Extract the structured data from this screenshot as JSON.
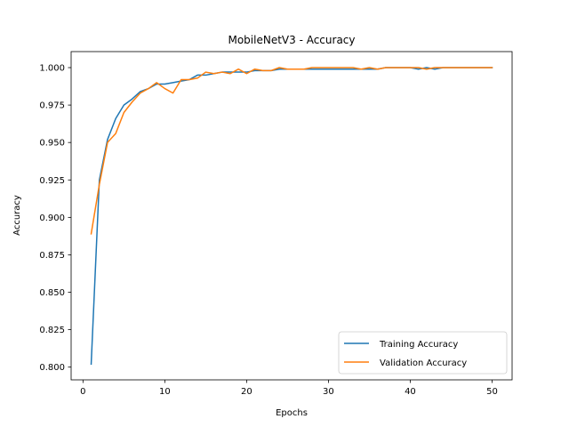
{
  "chart_data": {
    "type": "line",
    "title": "MobileNetV3 - Accuracy",
    "xlabel": "Epochs",
    "ylabel": "Accuracy",
    "xlim": [
      -1.45,
      52.45
    ],
    "ylim": [
      0.7915,
      1.0107
    ],
    "xticks": [
      0,
      10,
      20,
      30,
      40,
      50
    ],
    "yticks": [
      0.8,
      0.825,
      0.85,
      0.875,
      0.9,
      0.925,
      0.95,
      0.975,
      1.0
    ],
    "ytick_labels": [
      "0.800",
      "0.825",
      "0.850",
      "0.875",
      "0.900",
      "0.925",
      "0.950",
      "0.975",
      "1.000"
    ],
    "grid": false,
    "legend_position": "lower-right",
    "x": [
      1,
      2,
      3,
      4,
      5,
      6,
      7,
      8,
      9,
      10,
      11,
      12,
      13,
      14,
      15,
      16,
      17,
      18,
      19,
      20,
      21,
      22,
      23,
      24,
      25,
      26,
      27,
      28,
      29,
      30,
      31,
      32,
      33,
      34,
      35,
      36,
      37,
      38,
      39,
      40,
      41,
      42,
      43,
      44,
      45,
      46,
      47,
      48,
      49,
      50
    ],
    "series": [
      {
        "name": "Training Accuracy",
        "color": "#1f77b4",
        "values": [
          0.802,
          0.925,
          0.952,
          0.966,
          0.975,
          0.979,
          0.984,
          0.986,
          0.989,
          0.989,
          0.99,
          0.991,
          0.992,
          0.995,
          0.995,
          0.996,
          0.997,
          0.997,
          0.997,
          0.997,
          0.998,
          0.998,
          0.998,
          0.999,
          0.999,
          0.999,
          0.999,
          0.999,
          0.999,
          0.999,
          0.999,
          0.999,
          0.999,
          0.999,
          0.999,
          0.999,
          1.0,
          1.0,
          1.0,
          1.0,
          0.999,
          1.0,
          0.999,
          1.0,
          1.0,
          1.0,
          1.0,
          1.0,
          1.0,
          1.0
        ]
      },
      {
        "name": "Validation Accuracy",
        "color": "#ff7f0e",
        "values": [
          0.889,
          0.922,
          0.95,
          0.956,
          0.97,
          0.977,
          0.983,
          0.986,
          0.99,
          0.986,
          0.983,
          0.992,
          0.992,
          0.993,
          0.997,
          0.996,
          0.997,
          0.996,
          0.999,
          0.996,
          0.999,
          0.998,
          0.998,
          1.0,
          0.999,
          0.999,
          0.999,
          1.0,
          1.0,
          1.0,
          1.0,
          1.0,
          1.0,
          0.999,
          1.0,
          0.999,
          1.0,
          1.0,
          1.0,
          1.0,
          1.0,
          0.999,
          1.0,
          1.0,
          1.0,
          1.0,
          1.0,
          1.0,
          1.0,
          1.0
        ]
      }
    ]
  }
}
